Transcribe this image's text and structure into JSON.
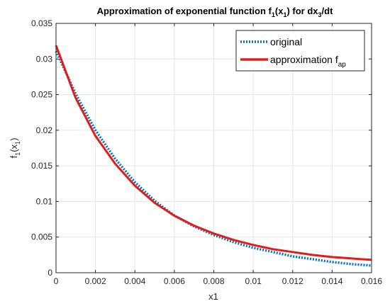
{
  "chart_data": {
    "type": "line",
    "title": {
      "main": "Approximation of exponential function f",
      "sub1": "1",
      "mid": "(x",
      "sub2": "1",
      "end1": ") for dx",
      "sub3": "3",
      "end2": "/dt"
    },
    "xlabel": "x1",
    "ylabel": {
      "main": "f",
      "sub1": "1",
      "mid": "(x",
      "sub2": "1",
      "end": ")"
    },
    "xlim": [
      0,
      0.016
    ],
    "ylim": [
      0,
      0.035
    ],
    "xticks": [
      "0",
      "0.002",
      "0.004",
      "0.006",
      "0.008",
      "0.01",
      "0.012",
      "0.014",
      "0.016"
    ],
    "yticks": [
      "0",
      "0.005",
      "0.01",
      "0.015",
      "0.02",
      "0.025",
      "0.03",
      "0.035"
    ],
    "grid": true,
    "legend_position": "top-right",
    "series": [
      {
        "name": "original",
        "legend": {
          "main": "original",
          "sub": ""
        },
        "style": "dotted",
        "color": "#0072bd",
        "x": [
          0,
          0.001,
          0.002,
          0.003,
          0.004,
          0.005,
          0.006,
          0.007,
          0.008,
          0.009,
          0.01,
          0.011,
          0.012,
          0.013,
          0.014,
          0.015,
          0.016
        ],
        "values": [
          0.0311,
          0.0251,
          0.02,
          0.016,
          0.0127,
          0.0101,
          0.008,
          0.0065,
          0.0053,
          0.0043,
          0.0035,
          0.0029,
          0.0023,
          0.0019,
          0.0015,
          0.0012,
          0.001
        ]
      },
      {
        "name": "approximation fap",
        "legend": {
          "main": "approximation f",
          "sub": "ap"
        },
        "style": "solid",
        "color": "#e41a1c",
        "x": [
          0,
          0.001,
          0.002,
          0.003,
          0.004,
          0.005,
          0.006,
          0.007,
          0.008,
          0.009,
          0.01,
          0.011,
          0.012,
          0.013,
          0.014,
          0.015,
          0.016
        ],
        "values": [
          0.0319,
          0.0245,
          0.0192,
          0.0153,
          0.0122,
          0.0098,
          0.008,
          0.0066,
          0.0055,
          0.0046,
          0.0039,
          0.0033,
          0.0029,
          0.0025,
          0.0022,
          0.002,
          0.0018
        ]
      }
    ]
  }
}
